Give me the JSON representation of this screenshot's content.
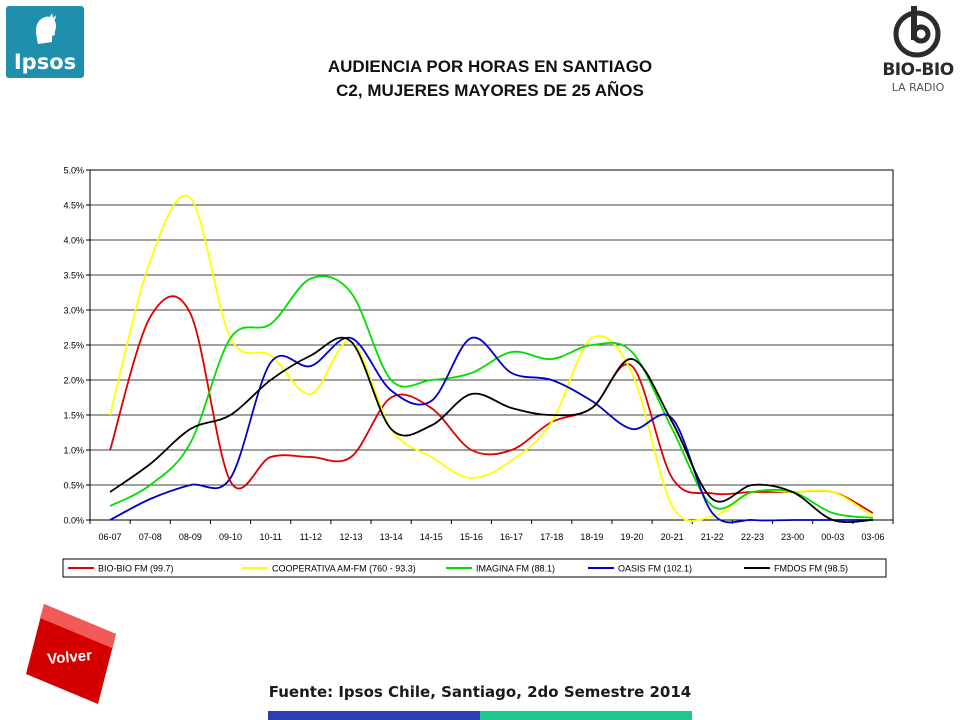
{
  "logos": {
    "left_text": "Ipsos",
    "right_text": "BIO-BIO",
    "right_subtext": "LA RADIO",
    "left_color": "#1f8fae"
  },
  "title_line1": "AUDIENCIA POR HORAS EN SANTIAGO",
  "title_line2": "C2, MUJERES MAYORES DE 25 AÑOS",
  "volver_label": "Volver",
  "source": "Fuente: Ipsos Chile, Santiago, 2do Semestre 2014",
  "chart_data": {
    "type": "line",
    "categories": [
      "06-07",
      "07-08",
      "08-09",
      "09-10",
      "10-11",
      "11-12",
      "12-13",
      "13-14",
      "14-15",
      "15-16",
      "16-17",
      "17-18",
      "18-19",
      "19-20",
      "20-21",
      "21-22",
      "22-23",
      "23-00",
      "00-03",
      "03-06"
    ],
    "y_ticks": [
      "0.0%",
      "0.5%",
      "1.0%",
      "1.5%",
      "2.0%",
      "2.5%",
      "3.0%",
      "3.5%",
      "4.0%",
      "4.5%",
      "5.0%"
    ],
    "ylim": [
      0,
      5.0
    ],
    "grid": true,
    "legend_position": "bottom",
    "series": [
      {
        "name": "BIO-BIO FM (99.7)",
        "color": "#e00000",
        "values": [
          1.0,
          2.9,
          2.95,
          0.55,
          0.9,
          0.9,
          0.9,
          1.75,
          1.6,
          1.0,
          1.0,
          1.4,
          1.6,
          2.2,
          0.6,
          0.38,
          0.4,
          0.4,
          0.4,
          0.1
        ]
      },
      {
        "name": "COOPERATIVA AM-FM (760 - 93.3)",
        "color": "#ffff00",
        "values": [
          1.5,
          3.7,
          4.6,
          2.6,
          2.35,
          1.8,
          2.55,
          1.3,
          0.9,
          0.6,
          0.85,
          1.4,
          2.6,
          2.1,
          0.2,
          0.05,
          0.4,
          0.4,
          0.4,
          0.05
        ]
      },
      {
        "name": "IMAGINA FM (88.1)",
        "color": "#00dd00",
        "values": [
          0.2,
          0.5,
          1.1,
          2.6,
          2.8,
          3.45,
          3.25,
          2.0,
          2.0,
          2.1,
          2.4,
          2.3,
          2.5,
          2.4,
          1.3,
          0.2,
          0.4,
          0.4,
          0.1,
          0.03
        ]
      },
      {
        "name": "OASIS FM (102.1)",
        "color": "#0000cc",
        "values": [
          0.0,
          0.3,
          0.5,
          0.6,
          2.25,
          2.2,
          2.6,
          1.85,
          1.7,
          2.6,
          2.1,
          2.0,
          1.7,
          1.3,
          1.45,
          0.1,
          0.0,
          0.0,
          0.0,
          0.0
        ]
      },
      {
        "name": "FMDOS FM (98.5)",
        "color": "#000000",
        "values": [
          0.4,
          0.8,
          1.3,
          1.5,
          2.0,
          2.35,
          2.55,
          1.3,
          1.35,
          1.8,
          1.6,
          1.5,
          1.6,
          2.3,
          1.4,
          0.3,
          0.5,
          0.4,
          0.0,
          0.0
        ]
      }
    ]
  }
}
